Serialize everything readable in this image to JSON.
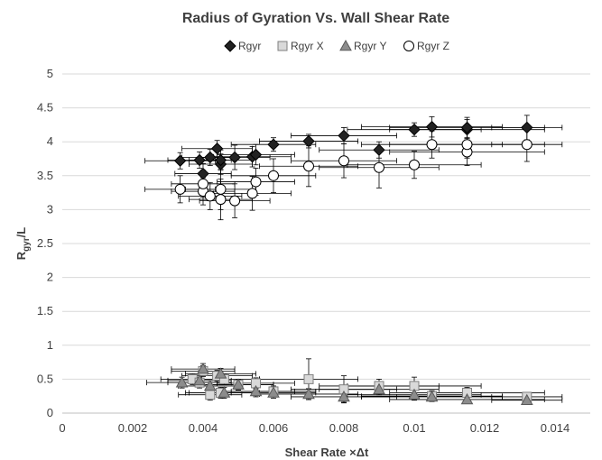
{
  "chart_data": {
    "type": "scatter",
    "title": "Radius of Gyration Vs. Wall Shear Rate",
    "xlabel": "Shear Rate ×Δt",
    "ylabel": "R",
    "ylabel_sub": "gyr",
    "ylabel_suffix": "/L",
    "xlim": [
      0,
      0.015
    ],
    "ylim": [
      0,
      5
    ],
    "xticks": [
      "0",
      "0.002",
      "0.004",
      "0.006",
      "0.008",
      "0.01",
      "0.012",
      "0.014"
    ],
    "yticks": [
      "0",
      "0.5",
      "1",
      "1.5",
      "2",
      "2.5",
      "3",
      "3.5",
      "4",
      "4.5",
      "5"
    ],
    "grid": "horizontal",
    "legend_position": "top",
    "error_bar_color": "#000000",
    "series": [
      {
        "name": "Rgyr",
        "marker": "diamond",
        "fill": "#222222",
        "stroke": "#000000",
        "points": [
          {
            "x": 0.00335,
            "y": 3.72,
            "xerr": 0.001,
            "yerr": 0.12
          },
          {
            "x": 0.0039,
            "y": 3.73,
            "xerr": 0.0009,
            "yerr": 0.12
          },
          {
            "x": 0.004,
            "y": 3.53,
            "xerr": 0.0008,
            "yerr": 0.15
          },
          {
            "x": 0.0042,
            "y": 3.77,
            "xerr": 0.0008,
            "yerr": 0.12
          },
          {
            "x": 0.0044,
            "y": 3.9,
            "xerr": 0.001,
            "yerr": 0.12
          },
          {
            "x": 0.0045,
            "y": 3.67,
            "xerr": 0.0009,
            "yerr": 0.15
          },
          {
            "x": 0.0045,
            "y": 3.73,
            "xerr": 0.0009,
            "yerr": 0.15
          },
          {
            "x": 0.0049,
            "y": 3.77,
            "xerr": 0.001,
            "yerr": 0.18
          },
          {
            "x": 0.0054,
            "y": 3.78,
            "xerr": 0.0011,
            "yerr": 0.15
          },
          {
            "x": 0.0055,
            "y": 3.81,
            "xerr": 0.0011,
            "yerr": 0.15
          },
          {
            "x": 0.006,
            "y": 3.96,
            "xerr": 0.0012,
            "yerr": 0.1
          },
          {
            "x": 0.007,
            "y": 4.01,
            "xerr": 0.0014,
            "yerr": 0.1
          },
          {
            "x": 0.008,
            "y": 4.09,
            "xerr": 0.0015,
            "yerr": 0.12
          },
          {
            "x": 0.009,
            "y": 3.88,
            "xerr": 0.0017,
            "yerr": 0.12
          },
          {
            "x": 0.01,
            "y": 4.18,
            "xerr": 0.0019,
            "yerr": 0.1
          },
          {
            "x": 0.0105,
            "y": 4.22,
            "xerr": 0.002,
            "yerr": 0.15
          },
          {
            "x": 0.0115,
            "y": 4.18,
            "xerr": 0.0022,
            "yerr": 0.15
          },
          {
            "x": 0.0115,
            "y": 4.21,
            "xerr": 0.0022,
            "yerr": 0.15
          },
          {
            "x": 0.0132,
            "y": 4.21,
            "xerr": 0.001,
            "yerr": 0.18
          }
        ]
      },
      {
        "name": "Rgyr X",
        "marker": "square",
        "fill": "#d9d9d9",
        "stroke": "#7f7f7f",
        "points": [
          {
            "x": 0.0037,
            "y": 0.5,
            "xerr": 0.0009,
            "yerr": 0.08
          },
          {
            "x": 0.0039,
            "y": 0.45,
            "xerr": 0.0009,
            "yerr": 0.08
          },
          {
            "x": 0.004,
            "y": 0.62,
            "xerr": 0.0009,
            "yerr": 0.08
          },
          {
            "x": 0.0042,
            "y": 0.27,
            "xerr": 0.0009,
            "yerr": 0.08
          },
          {
            "x": 0.0044,
            "y": 0.55,
            "xerr": 0.001,
            "yerr": 0.08
          },
          {
            "x": 0.0045,
            "y": 0.3,
            "xerr": 0.001,
            "yerr": 0.08
          },
          {
            "x": 0.0046,
            "y": 0.5,
            "xerr": 0.001,
            "yerr": 0.08
          },
          {
            "x": 0.005,
            "y": 0.42,
            "xerr": 0.001,
            "yerr": 0.08
          },
          {
            "x": 0.0055,
            "y": 0.44,
            "xerr": 0.0011,
            "yerr": 0.08
          },
          {
            "x": 0.006,
            "y": 0.32,
            "xerr": 0.0012,
            "yerr": 0.08
          },
          {
            "x": 0.007,
            "y": 0.5,
            "xerr": 0.0014,
            "yerr": 0.3
          },
          {
            "x": 0.008,
            "y": 0.35,
            "xerr": 0.0015,
            "yerr": 0.2
          },
          {
            "x": 0.009,
            "y": 0.4,
            "xerr": 0.0017,
            "yerr": 0.1
          },
          {
            "x": 0.01,
            "y": 0.4,
            "xerr": 0.0019,
            "yerr": 0.13
          },
          {
            "x": 0.0105,
            "y": 0.25,
            "xerr": 0.002,
            "yerr": 0.08
          },
          {
            "x": 0.0115,
            "y": 0.3,
            "xerr": 0.0022,
            "yerr": 0.08
          },
          {
            "x": 0.0132,
            "y": 0.24,
            "xerr": 0.001,
            "yerr": 0.06
          }
        ]
      },
      {
        "name": "Rgyr Y",
        "marker": "triangle",
        "fill": "#8c8c8c",
        "stroke": "#595959",
        "points": [
          {
            "x": 0.0034,
            "y": 0.45,
            "xerr": 0.001,
            "yerr": 0.08
          },
          {
            "x": 0.0039,
            "y": 0.48,
            "xerr": 0.0009,
            "yerr": 0.08
          },
          {
            "x": 0.004,
            "y": 0.65,
            "xerr": 0.0009,
            "yerr": 0.08
          },
          {
            "x": 0.0042,
            "y": 0.4,
            "xerr": 0.0009,
            "yerr": 0.08
          },
          {
            "x": 0.0045,
            "y": 0.58,
            "xerr": 0.001,
            "yerr": 0.08
          },
          {
            "x": 0.0046,
            "y": 0.3,
            "xerr": 0.001,
            "yerr": 0.08
          },
          {
            "x": 0.005,
            "y": 0.42,
            "xerr": 0.001,
            "yerr": 0.08
          },
          {
            "x": 0.0055,
            "y": 0.32,
            "xerr": 0.0011,
            "yerr": 0.08
          },
          {
            "x": 0.006,
            "y": 0.3,
            "xerr": 0.0012,
            "yerr": 0.08
          },
          {
            "x": 0.007,
            "y": 0.28,
            "xerr": 0.0014,
            "yerr": 0.08
          },
          {
            "x": 0.008,
            "y": 0.24,
            "xerr": 0.0015,
            "yerr": 0.08
          },
          {
            "x": 0.009,
            "y": 0.35,
            "xerr": 0.0017,
            "yerr": 0.08
          },
          {
            "x": 0.01,
            "y": 0.27,
            "xerr": 0.0019,
            "yerr": 0.08
          },
          {
            "x": 0.0105,
            "y": 0.24,
            "xerr": 0.002,
            "yerr": 0.06
          },
          {
            "x": 0.0115,
            "y": 0.2,
            "xerr": 0.0022,
            "yerr": 0.06
          },
          {
            "x": 0.0132,
            "y": 0.19,
            "xerr": 0.001,
            "yerr": 0.05
          }
        ]
      },
      {
        "name": "Rgyr Z",
        "marker": "circle",
        "fill": "#ffffff",
        "stroke": "#000000",
        "points": [
          {
            "x": 0.00335,
            "y": 3.3,
            "xerr": 0.001,
            "yerr": 0.2
          },
          {
            "x": 0.004,
            "y": 3.27,
            "xerr": 0.0009,
            "yerr": 0.2
          },
          {
            "x": 0.004,
            "y": 3.38,
            "xerr": 0.0009,
            "yerr": 0.2
          },
          {
            "x": 0.0042,
            "y": 3.2,
            "xerr": 0.0009,
            "yerr": 0.2
          },
          {
            "x": 0.0045,
            "y": 3.15,
            "xerr": 0.0009,
            "yerr": 0.3
          },
          {
            "x": 0.0045,
            "y": 3.3,
            "xerr": 0.001,
            "yerr": 0.3
          },
          {
            "x": 0.0049,
            "y": 3.13,
            "xerr": 0.001,
            "yerr": 0.25
          },
          {
            "x": 0.0054,
            "y": 3.24,
            "xerr": 0.0011,
            "yerr": 0.25
          },
          {
            "x": 0.0055,
            "y": 3.41,
            "xerr": 0.0011,
            "yerr": 0.2
          },
          {
            "x": 0.006,
            "y": 3.5,
            "xerr": 0.0012,
            "yerr": 0.25
          },
          {
            "x": 0.007,
            "y": 3.64,
            "xerr": 0.0014,
            "yerr": 0.3
          },
          {
            "x": 0.008,
            "y": 3.72,
            "xerr": 0.0015,
            "yerr": 0.25
          },
          {
            "x": 0.009,
            "y": 3.62,
            "xerr": 0.0017,
            "yerr": 0.3
          },
          {
            "x": 0.01,
            "y": 3.66,
            "xerr": 0.0019,
            "yerr": 0.2
          },
          {
            "x": 0.0105,
            "y": 3.96,
            "xerr": 0.002,
            "yerr": 0.2
          },
          {
            "x": 0.0115,
            "y": 3.85,
            "xerr": 0.0022,
            "yerr": 0.2
          },
          {
            "x": 0.0115,
            "y": 3.96,
            "xerr": 0.0022,
            "yerr": 0.2
          },
          {
            "x": 0.0132,
            "y": 3.96,
            "xerr": 0.001,
            "yerr": 0.25
          }
        ]
      }
    ]
  }
}
